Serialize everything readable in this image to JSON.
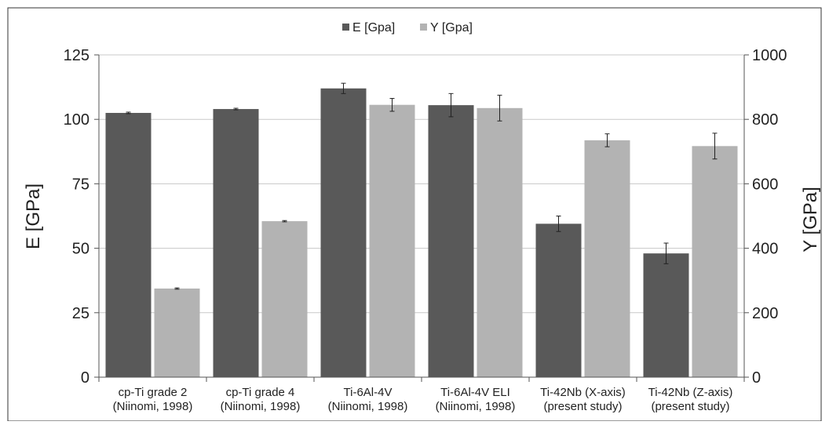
{
  "chart_data": {
    "type": "bar",
    "categories": [
      [
        "cp-Ti grade 2",
        "(Niinomi, 1998)"
      ],
      [
        "cp-Ti grade 4",
        "(Niinomi, 1998)"
      ],
      [
        "Ti-6Al-4V",
        "(Niinomi, 1998)"
      ],
      [
        "Ti-6Al-4V ELI",
        "(Niinomi, 1998)"
      ],
      [
        "Ti-42Nb (X-axis)",
        "(present study)"
      ],
      [
        "Ti-42Nb (Z-axis)",
        "(present study)"
      ]
    ],
    "series": [
      {
        "name": "E [Gpa]",
        "axis": "left",
        "color": "#595959",
        "values": [
          102.5,
          104,
          112,
          105.5,
          59.5,
          48
        ],
        "errors": [
          0.3,
          0.3,
          2,
          4.5,
          3,
          4
        ]
      },
      {
        "name": "Y [Gpa]",
        "axis": "right",
        "color": "#b3b3b3",
        "values": [
          275,
          484,
          845,
          835,
          735,
          717
        ],
        "errors": [
          2,
          2,
          20,
          40,
          20,
          40
        ]
      }
    ],
    "ylabel": "E [GPa]",
    "y2label": "Y  [GPa]",
    "ylim": [
      0,
      125
    ],
    "y2lim": [
      0,
      1000
    ],
    "yticks": [
      0,
      25,
      50,
      75,
      100,
      125
    ],
    "y2ticks": [
      0,
      200,
      400,
      600,
      800,
      1000
    ],
    "grid": true,
    "legend_position": "top-center"
  }
}
